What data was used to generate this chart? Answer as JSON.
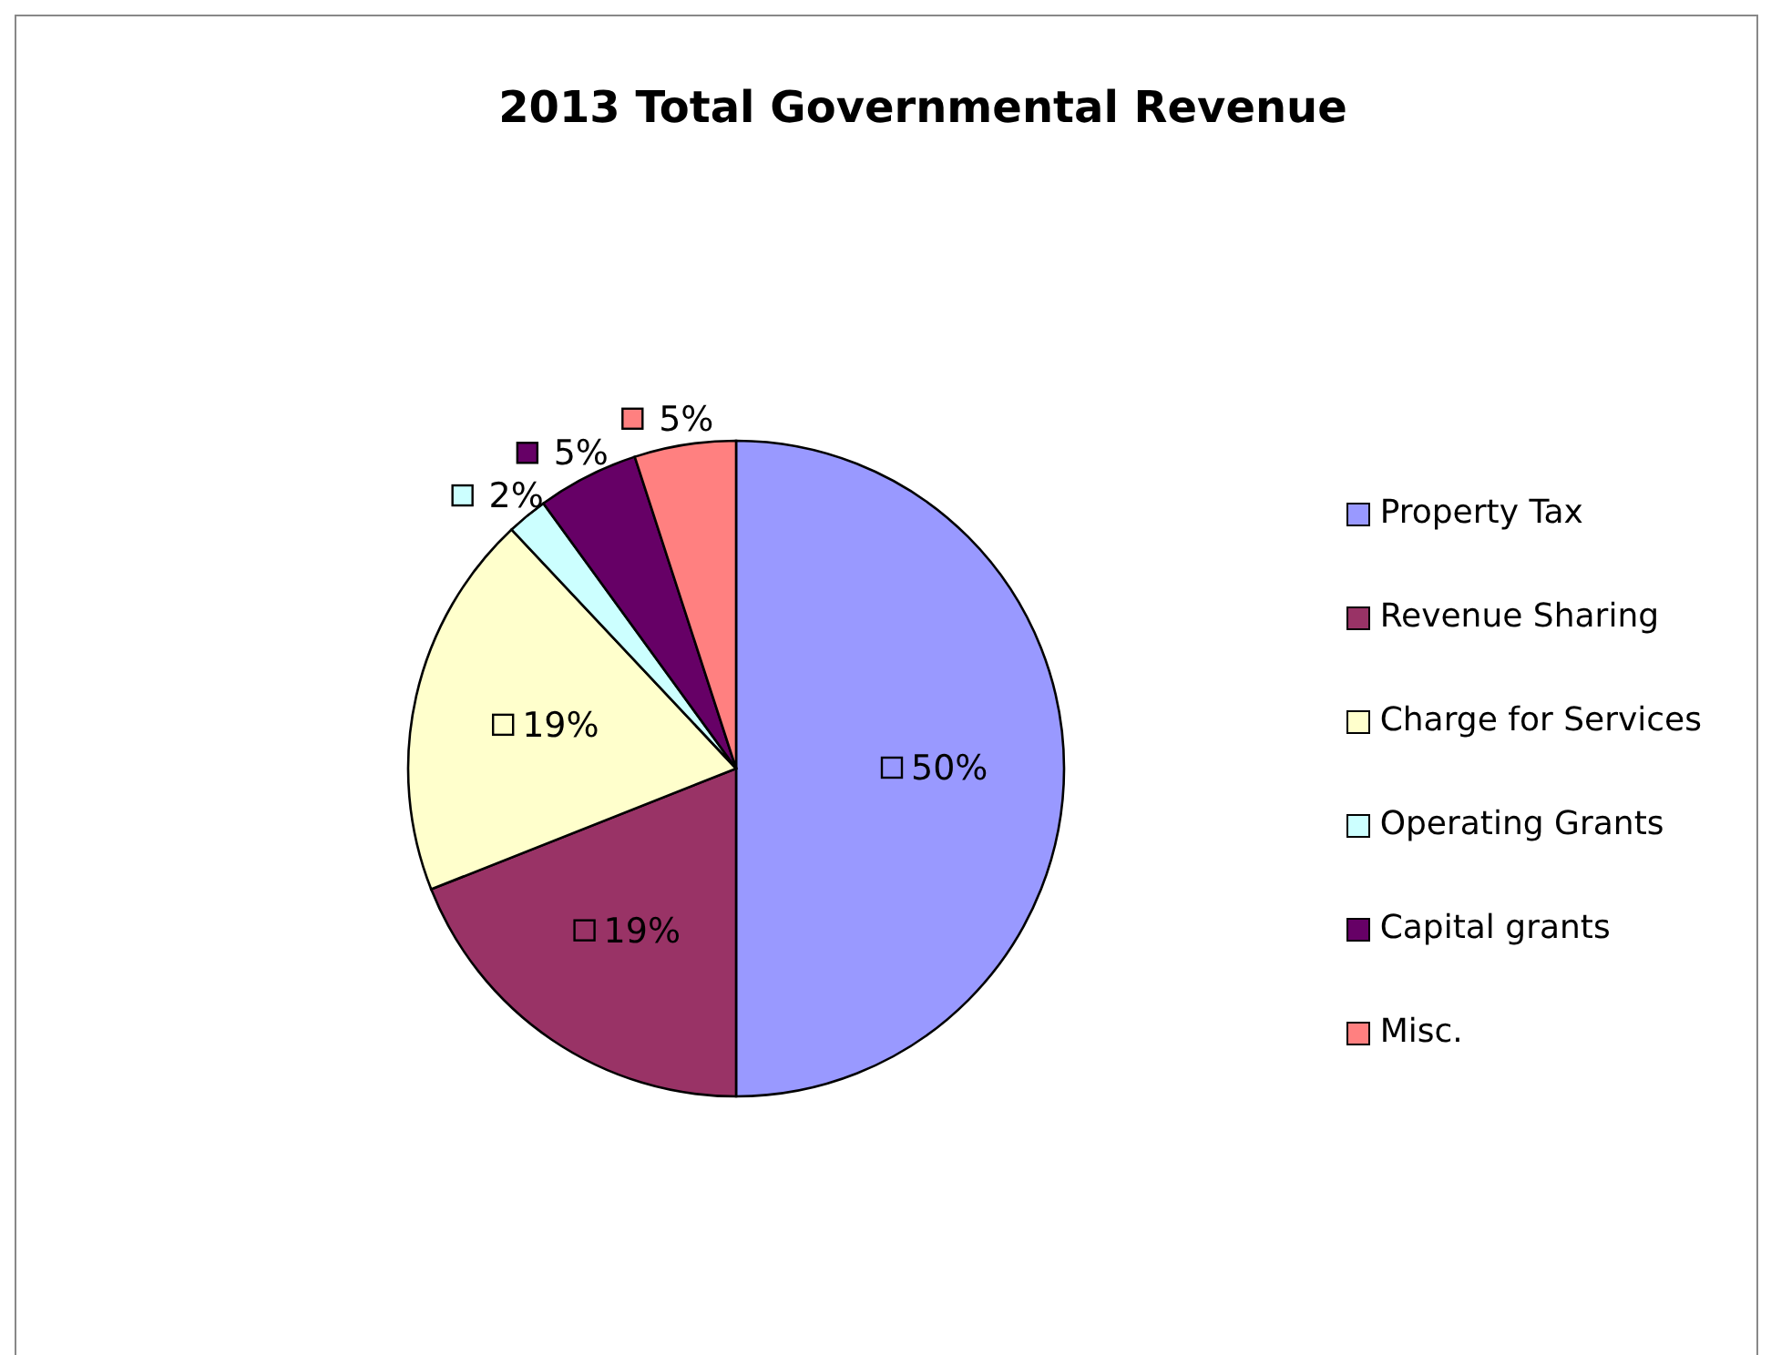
{
  "chart_data": {
    "type": "pie",
    "title": "2013 Total Governmental Revenue",
    "categories": [
      "Property Tax",
      "Revenue Sharing",
      "Charge for Services",
      "Operating Grants",
      "Capital grants",
      "Misc."
    ],
    "values": [
      50,
      19,
      19,
      2,
      5,
      5
    ],
    "value_labels": [
      "50%",
      "19%",
      "19%",
      "2%",
      "5%",
      "5%"
    ],
    "colors": [
      "#9999ff",
      "#993366",
      "#ffffcc",
      "#ccffff",
      "#660066",
      "#ff8080"
    ],
    "legend": "right"
  }
}
